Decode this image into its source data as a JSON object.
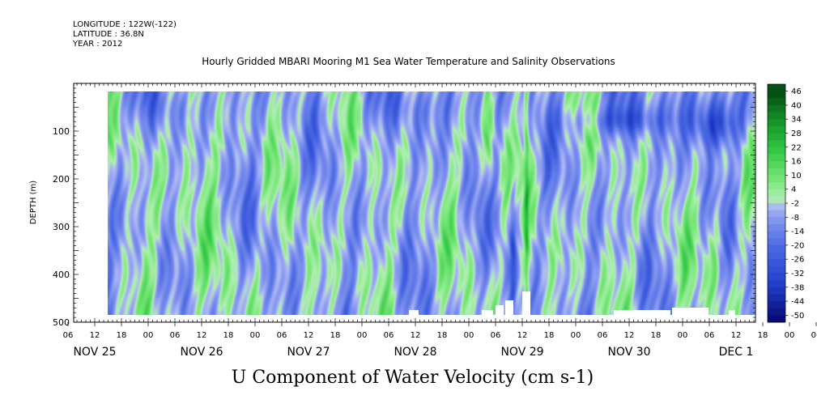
{
  "header": {
    "longitude": "LONGITUDE : 122W(-122)",
    "latitude": "LATITUDE : 36.8N",
    "year": "YEAR : 2012"
  },
  "chart_data": {
    "type": "heatmap",
    "title": "Hourly Gridded MBARI Mooring M1 Sea Water Temperature and Salinity Observations",
    "xlabel": "U Component of Water Velocity (cm s-1)",
    "ylabel": "DEPTH (m)",
    "y_ticks": [
      100,
      200,
      300,
      400,
      500
    ],
    "ylim": [
      500,
      0
    ],
    "x_hour_ticks": [
      "06",
      "12",
      "18",
      "00",
      "06",
      "12",
      "18",
      "00",
      "06",
      "12",
      "18",
      "00",
      "06",
      "12",
      "18",
      "00",
      "06",
      "12",
      "18",
      "00",
      "06",
      "12",
      "18",
      "00",
      "06",
      "12",
      "18",
      "00",
      "06"
    ],
    "x_days": [
      "NOV 25",
      "NOV 26",
      "NOV 27",
      "NOV 28",
      "NOV 29",
      "NOV 30",
      "DEC  1"
    ],
    "colorbar": {
      "labels": [
        "46",
        "40",
        "34",
        "28",
        "22",
        "16",
        "10",
        "4",
        "-2",
        "-8",
        "-14",
        "-20",
        "-26",
        "-32",
        "-38",
        "-44",
        "-50"
      ],
      "range": [
        -50,
        50
      ]
    }
  }
}
